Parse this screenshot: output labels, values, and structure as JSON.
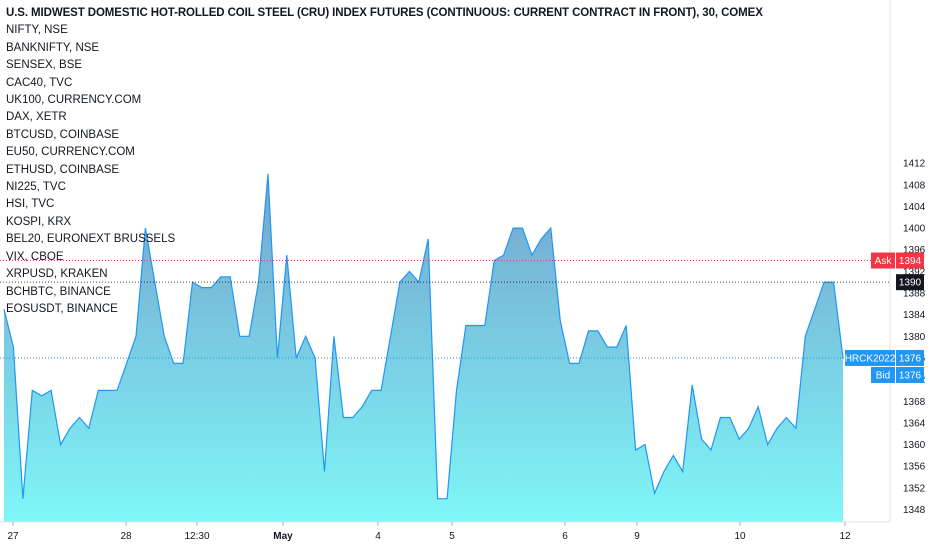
{
  "chart_data": {
    "type": "area",
    "title": "U.S. MIDWEST DOMESTIC HOT-ROLLED COIL STEEL (CRU) INDEX FUTURES (CONTINUOUS: CURRENT CONTRACT IN FRONT), 30, COMEX",
    "symbols": [
      "NIFTY, NSE",
      "BANKNIFTY, NSE",
      "SENSEX, BSE",
      "CAC40, TVC",
      "UK100, CURRENCY.COM",
      "DAX, XETR",
      "BTCUSD, COINBASE",
      "EU50, CURRENCY.COM",
      "ETHUSD, COINBASE",
      "NI225, TVC",
      "HSI, TVC",
      "KOSPI, KRX",
      "BEL20, EURONEXT BRUSSELS",
      "VIX, CBOE",
      "XRPUSD, KRAKEN",
      "BCHBTC, BINANCE",
      "EOSUSDT, BINANCE"
    ],
    "ylim": [
      1346,
      1414
    ],
    "y_ticks": [
      1348,
      1352,
      1356,
      1360,
      1364,
      1368,
      1372,
      1376,
      1380,
      1384,
      1388,
      1392,
      1396,
      1400,
      1404,
      1408,
      1412
    ],
    "x_tick_labels": [
      "27",
      "28",
      "12:30",
      "May",
      "4",
      "5",
      "6",
      "9",
      "10",
      "12"
    ],
    "grid": false,
    "values": [
      1385,
      1378,
      1350,
      1370,
      1369,
      1370,
      1360,
      1363,
      1365,
      1363,
      1370,
      1370,
      1370,
      1375,
      1380,
      1400,
      1390,
      1380,
      1375,
      1375,
      1390,
      1389,
      1389,
      1391,
      1391,
      1380,
      1380,
      1390,
      1410,
      1376,
      1395,
      1376,
      1380,
      1376,
      1355,
      1380,
      1365,
      1365,
      1367,
      1370,
      1370,
      1380,
      1390,
      1392,
      1390,
      1398,
      1350,
      1350,
      1370,
      1382,
      1382,
      1382,
      1394,
      1395,
      1400,
      1400,
      1395,
      1398,
      1400,
      1383,
      1375,
      1375,
      1381,
      1381,
      1378,
      1378,
      1382,
      1359,
      1360,
      1351,
      1355,
      1358,
      1355,
      1371,
      1361,
      1359,
      1365,
      1365,
      1361,
      1363,
      1367,
      1360,
      1363,
      1365,
      1363,
      1380,
      1385,
      1390,
      1390,
      1376
    ],
    "price_lines": [
      {
        "label": "Ask",
        "value": "1394",
        "color": "#f23645"
      },
      {
        "label": "",
        "value": "1390",
        "color": "#131722"
      },
      {
        "label": "HRCK2022",
        "value": "1376",
        "color": "#2196f3"
      },
      {
        "label": "Bid",
        "value": "1376",
        "color": "#2196f3"
      }
    ],
    "colors": {
      "line": "#2196f3",
      "fill_top": "#6d9fcc",
      "fill_bottom": "#7ff7f7",
      "ask": "#f23645",
      "last": "#131722",
      "bid": "#2196f3"
    }
  }
}
